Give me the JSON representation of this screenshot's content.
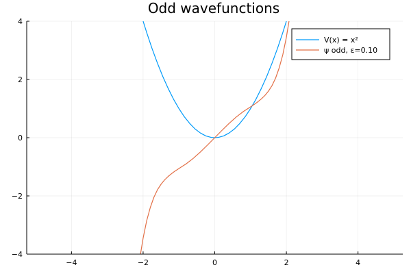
{
  "chart_data": {
    "type": "line",
    "title": "Odd wavefunctions",
    "xlabel": "",
    "ylabel": "",
    "xlim": [
      -5.25,
      5.25
    ],
    "ylim": [
      -4,
      4
    ],
    "x_ticks": [
      -4,
      -2,
      0,
      2,
      4
    ],
    "y_ticks": [
      -4,
      -2,
      0,
      2,
      4
    ],
    "x_tick_labels": [
      "−4",
      "−2",
      "0",
      "2",
      "4"
    ],
    "y_tick_labels": [
      "−4",
      "−2",
      "0",
      "2",
      "4"
    ],
    "grid": true,
    "legend_position": "top-right",
    "series": [
      {
        "name": "V(x) = x²",
        "color": "#009af9",
        "x": [
          -2.05,
          -1.9,
          -1.75,
          -1.6,
          -1.45,
          -1.3,
          -1.15,
          -1.0,
          -0.85,
          -0.7,
          -0.55,
          -0.4,
          -0.25,
          -0.1,
          0.0,
          0.1,
          0.25,
          0.4,
          0.55,
          0.7,
          0.85,
          1.0,
          1.15,
          1.3,
          1.45,
          1.6,
          1.75,
          1.9,
          2.05
        ],
        "y": [
          4.2,
          3.61,
          3.06,
          2.56,
          2.1,
          1.69,
          1.32,
          1.0,
          0.72,
          0.49,
          0.3,
          0.16,
          0.06,
          0.01,
          0.0,
          0.01,
          0.06,
          0.16,
          0.3,
          0.49,
          0.72,
          1.0,
          1.32,
          1.69,
          2.1,
          2.56,
          3.06,
          3.61,
          4.2
        ]
      },
      {
        "name": "ψ odd, ε=0.10",
        "color": "#e26f46",
        "x": [
          -2.1,
          -2.0,
          -1.9,
          -1.8,
          -1.7,
          -1.6,
          -1.5,
          -1.4,
          -1.3,
          -1.2,
          -1.1,
          -1.0,
          -0.9,
          -0.8,
          -0.6,
          -0.4,
          -0.2,
          0.0,
          0.2,
          0.4,
          0.6,
          0.8,
          0.9,
          1.0,
          1.1,
          1.2,
          1.3,
          1.4,
          1.5,
          1.6,
          1.7,
          1.8,
          1.9,
          2.0,
          2.1
        ],
        "y": [
          -4.2,
          -3.45,
          -2.85,
          -2.4,
          -2.05,
          -1.79,
          -1.6,
          -1.45,
          -1.33,
          -1.23,
          -1.14,
          -1.06,
          -0.98,
          -0.9,
          -0.71,
          -0.49,
          -0.25,
          0.0,
          0.25,
          0.49,
          0.71,
          0.9,
          0.98,
          1.06,
          1.14,
          1.23,
          1.33,
          1.45,
          1.6,
          1.79,
          2.05,
          2.4,
          2.85,
          3.45,
          4.2
        ]
      }
    ]
  }
}
